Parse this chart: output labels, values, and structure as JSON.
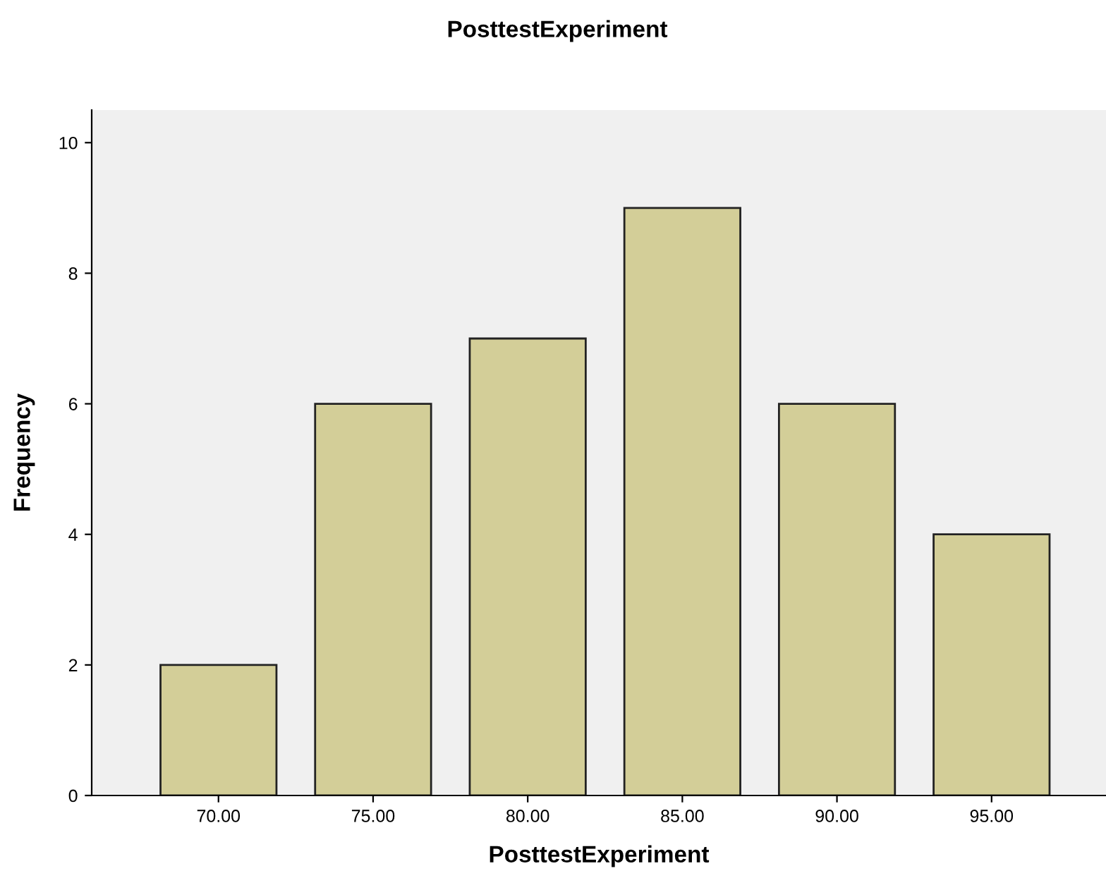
{
  "chart_data": {
    "type": "bar",
    "title": "PosttestExperiment",
    "xlabel": "PosttestExperiment",
    "ylabel": "Frequency",
    "categories": [
      "70.00",
      "75.00",
      "80.00",
      "85.00",
      "90.00",
      "95.00"
    ],
    "values": [
      2,
      6,
      7,
      9,
      6,
      4
    ],
    "color": "#d3ce98",
    "ylim": [
      0,
      10.5
    ],
    "yticks": [
      0,
      2,
      4,
      6,
      8,
      10
    ],
    "grid": false
  }
}
